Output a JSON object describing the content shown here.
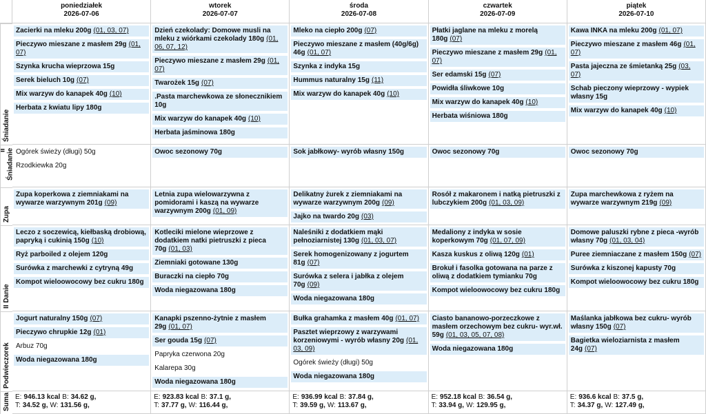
{
  "days": [
    {
      "name": "poniedziałek",
      "date": "2026-07-06"
    },
    {
      "name": "wtorek",
      "date": "2026-07-07"
    },
    {
      "name": "środa",
      "date": "2026-07-08"
    },
    {
      "name": "czwartek",
      "date": "2026-07-09"
    },
    {
      "name": "piątek",
      "date": "2026-07-10"
    }
  ],
  "meals": [
    {
      "label": "Śniadanie",
      "cells": [
        [
          {
            "name": "Zacierki na mleku 200g",
            "allergens": "(01, 03, 07)",
            "highlighted": true
          },
          {
            "name": "Pieczywo mieszane z masłem 29g",
            "allergens": "(01, 07)",
            "highlighted": true
          },
          {
            "name": "Szynka krucha wieprzowa 15g",
            "highlighted": true
          },
          {
            "name": "Serek bieluch 10g",
            "allergens": "(07)",
            "highlighted": true
          },
          {
            "name": "Mix warzyw do kanapek 40g",
            "allergens": "(10)",
            "highlighted": true
          },
          {
            "name": "Herbata z kwiatu lipy 180g",
            "highlighted": true
          }
        ],
        [
          {
            "name": "Dzień czekolady: Domowe musli na mleku z wiórkami czekolady 180g",
            "allergens": "(01, 06, 07, 12)",
            "highlighted": true
          },
          {
            "name": "Pieczywo mieszane z masłem 29g",
            "allergens": "(01, 07)",
            "highlighted": true
          },
          {
            "name": "Twarożek 15g",
            "allergens": "(07)",
            "highlighted": true
          },
          {
            "name": ".Pasta marchewkowa ze słonecznikiem 10g",
            "highlighted": true
          },
          {
            "name": "Mix warzyw do kanapek 40g",
            "allergens": "(10)",
            "highlighted": true
          },
          {
            "name": "Herbata jaśminowa 180g",
            "highlighted": true
          }
        ],
        [
          {
            "name": "Mleko na ciepło 200g",
            "allergens": "(07)",
            "highlighted": true
          },
          {
            "name": "Pieczywo mieszane z masłem (40g/6g) 46g",
            "allergens": "(01, 07)",
            "highlighted": true
          },
          {
            "name": "Szynka z indyka 15g",
            "highlighted": true
          },
          {
            "name": "Hummus naturalny 15g",
            "allergens": "(11)",
            "highlighted": true
          },
          {
            "name": "Mix warzyw do kanapek 40g",
            "allergens": "(10)",
            "highlighted": true
          }
        ],
        [
          {
            "name": "Płatki jaglane na mleku z morelą 180g",
            "allergens": "(07)",
            "highlighted": true
          },
          {
            "name": "Pieczywo mieszane z masłem 29g",
            "allergens": "(01, 07)",
            "highlighted": true
          },
          {
            "name": "Ser edamski 15g",
            "allergens": "(07)",
            "highlighted": true
          },
          {
            "name": "Powidła śliwkowe 10g",
            "highlighted": true
          },
          {
            "name": "Mix warzyw do kanapek 40g",
            "allergens": "(10)",
            "highlighted": true
          },
          {
            "name": "Herbata wiśniowa 180g",
            "highlighted": true
          }
        ],
        [
          {
            "name": "Kawa INKA na mleku 200g",
            "allergens": "(01, 07)",
            "highlighted": true
          },
          {
            "name": "Pieczywo mieszane z masłem 46g",
            "allergens": "(01, 07)",
            "highlighted": true
          },
          {
            "name": "Pasta jajeczna ze śmietanką 25g",
            "allergens": "(03, 07)",
            "highlighted": true
          },
          {
            "name": "Schab pieczony wieprzowy - wypiek własny 15g",
            "highlighted": true
          },
          {
            "name": "Mix warzyw do kanapek 40g",
            "allergens": "(10)",
            "highlighted": true
          }
        ]
      ]
    },
    {
      "label": "II Śniadanie",
      "cells": [
        [
          {
            "name": "Ogórek świeży (długi) 50g",
            "highlighted": false
          },
          {
            "name": "Rzodkiewka 20g",
            "highlighted": false
          }
        ],
        [
          {
            "name": "Owoc sezonowy 70g",
            "highlighted": true
          }
        ],
        [
          {
            "name": "Sok jabłkowy- wyrób własny 150g",
            "highlighted": true
          }
        ],
        [
          {
            "name": "Owoc sezonowy 70g",
            "highlighted": true
          }
        ],
        [
          {
            "name": "Owoc sezonowy 70g",
            "highlighted": true
          }
        ]
      ]
    },
    {
      "label": "Zupa",
      "cells": [
        [
          {
            "name": "Zupa koperkowa z ziemniakami na wywarze warzywnym 201g",
            "allergens": "(09)",
            "highlighted": true
          }
        ],
        [
          {
            "name": "Letnia zupa wielowarzywna z pomidorami i kaszą na wywarze warzywnym 200g",
            "allergens": "(01, 09)",
            "highlighted": true
          }
        ],
        [
          {
            "name": "Delikatny żurek z ziemniakami na wywarze warzywnym 200g",
            "allergens": "(09)",
            "highlighted": true
          },
          {
            "name": "Jajko na twardo 20g",
            "allergens": "(03)",
            "highlighted": true
          }
        ],
        [
          {
            "name": "Rosół z makaronem i natką pietruszki z lubczykiem 200g",
            "allergens": "(01, 03, 09)",
            "highlighted": true
          }
        ],
        [
          {
            "name": "Zupa marchewkowa z ryżem na wywarze warzywnym 219g",
            "allergens": "(09)",
            "highlighted": true
          }
        ]
      ]
    },
    {
      "label": "II Danie",
      "cells": [
        [
          {
            "name": "Leczo z soczewicą, kiełbaską drobiową, papryką i cukinią 150g",
            "allergens": "(10)",
            "highlighted": true
          },
          {
            "name": "Ryż parboiled z olejem 120g",
            "highlighted": true
          },
          {
            "name": "Surówka z marchewki z cytryną 49g",
            "highlighted": true
          },
          {
            "name": "Kompot wieloowocowy bez cukru 180g",
            "highlighted": true
          }
        ],
        [
          {
            "name": "Kotleciki mielone wieprzowe z dodatkiem natki pietruszki z pieca 70g",
            "allergens": "(01, 03)",
            "highlighted": true
          },
          {
            "name": "Ziemniaki gotowane 130g",
            "highlighted": true
          },
          {
            "name": "Buraczki na ciepło 70g",
            "highlighted": true
          },
          {
            "name": "Woda niegazowana 180g",
            "highlighted": true
          }
        ],
        [
          {
            "name": "Naleśniki z dodatkiem mąki pełnoziarnistej 130g",
            "allergens": "(01, 03, 07)",
            "highlighted": true
          },
          {
            "name": "Serek homogenizowany z jogurtem 81g",
            "allergens": "(07)",
            "highlighted": true
          },
          {
            "name": "Surówka z selera i jabłka z olejem 70g",
            "allergens": "(09)",
            "highlighted": true
          },
          {
            "name": "Woda niegazowana 180g",
            "highlighted": true
          }
        ],
        [
          {
            "name": "Medaliony z indyka w sosie koperkowym 70g",
            "allergens": "(01, 07, 09)",
            "highlighted": true
          },
          {
            "name": "Kasza kuskus z oliwą 120g",
            "allergens": "(01)",
            "highlighted": true
          },
          {
            "name": "Brokuł i fasolka gotowana na parze z oliwą z dodatkiem tymianku 70g",
            "highlighted": true
          },
          {
            "name": "Kompot wieloowocowy bez cukru 180g",
            "highlighted": true
          }
        ],
        [
          {
            "name": "Domowe paluszki rybne z pieca -wyrób własny 70g",
            "allergens": "(01, 03, 04)",
            "highlighted": true
          },
          {
            "name": "Puree ziemniaczane z masłem 150g",
            "allergens": "(07)",
            "highlighted": true
          },
          {
            "name": "Surówka z kiszonej kapusty 70g",
            "highlighted": true
          },
          {
            "name": "Kompot wieloowocowy bez cukru 180g",
            "highlighted": true
          }
        ]
      ]
    },
    {
      "label": "Podwieczorek",
      "cells": [
        [
          {
            "name": "Jogurt naturalny 150g",
            "allergens": "(07)",
            "highlighted": true
          },
          {
            "name": "Pieczywo chrupkie 12g",
            "allergens": "(01)",
            "highlighted": true
          },
          {
            "name": "Arbuz 70g",
            "highlighted": false
          },
          {
            "name": "Woda niegazowana 180g",
            "highlighted": true
          }
        ],
        [
          {
            "name": "Kanapki pszenno-żytnie z masłem 29g",
            "allergens": "(01, 07)",
            "highlighted": true
          },
          {
            "name": "Ser gouda 15g",
            "allergens": "(07)",
            "highlighted": true
          },
          {
            "name": "Papryka czerwona 20g",
            "highlighted": false
          },
          {
            "name": "Kalarepa 30g",
            "highlighted": false
          },
          {
            "name": "Woda niegazowana 180g",
            "highlighted": true
          }
        ],
        [
          {
            "name": "Bułka grahamka z masłem 40g",
            "allergens": "(01, 07)",
            "highlighted": true
          },
          {
            "name": "Pasztet wieprzowy z warzywami korzeniowymi - wyrób własny 20g",
            "allergens": "(01, 03, 09)",
            "highlighted": true
          },
          {
            "name": "Ogórek świeży (długi) 50g",
            "highlighted": false
          },
          {
            "name": "Woda niegazowana 180g",
            "highlighted": true
          }
        ],
        [
          {
            "name": "Ciasto bananowo-porzeczkowe z masłem orzechowym bez cukru- wyr.wł. 59g",
            "allergens": "(01, 03, 05, 07, 08)",
            "highlighted": true
          },
          {
            "name": "Woda niegazowana 180g",
            "highlighted": true
          }
        ],
        [
          {
            "name": "Maślanka jabłkowa bez cukru- wyrób własny 150g",
            "allergens": "(07)",
            "highlighted": true
          },
          {
            "name": "Bagietka wieloziarnista z masłem 24g",
            "allergens": "(07)",
            "highlighted": true
          }
        ]
      ]
    }
  ],
  "summary": {
    "label": "Suma",
    "keys": [
      "E:",
      "B:",
      "T:",
      "W:"
    ],
    "cells": [
      [
        "946.13 kcal",
        "34.62 g,",
        "34.52 g,",
        "131.56 g,"
      ],
      [
        "923.83 kcal",
        "37.1 g,",
        "37.77 g,",
        "116.44 g,"
      ],
      [
        "936.99 kcal",
        "37.84 g,",
        "39.59 g,",
        "113.67 g,"
      ],
      [
        "952.18 kcal",
        "36.54 g,",
        "33.94 g,",
        "129.95 g,"
      ],
      [
        "936.6 kcal",
        "37.5 g,",
        "34.37 g,",
        "127.49 g,"
      ]
    ]
  }
}
